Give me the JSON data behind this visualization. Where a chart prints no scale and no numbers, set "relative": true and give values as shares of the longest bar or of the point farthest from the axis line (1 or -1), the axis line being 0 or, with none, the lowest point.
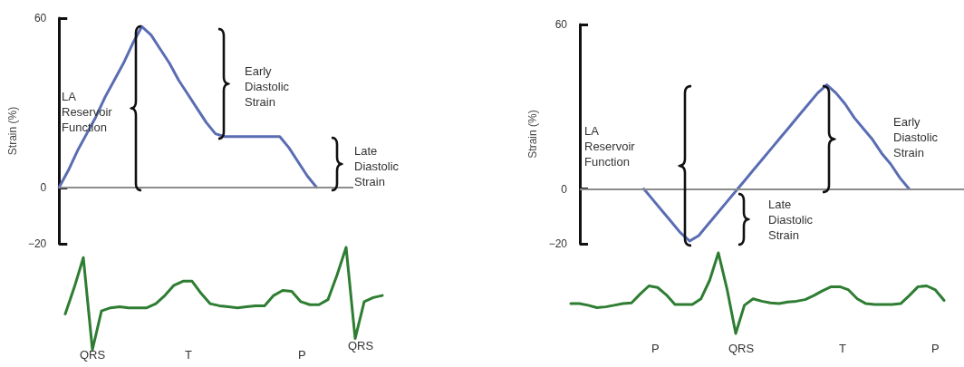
{
  "chart_data": [
    {
      "type": "line",
      "ylabel": "Strain (%)",
      "ylim": [
        -20,
        60
      ],
      "yticks": [
        -20,
        0,
        60
      ],
      "tick_labels": "y",
      "marker": "none",
      "categories": [
        null,
        null,
        null,
        null,
        null,
        null,
        null,
        null,
        null,
        null,
        null,
        null,
        null,
        null,
        null,
        null,
        null,
        null,
        null,
        null,
        null,
        null,
        null,
        null,
        null,
        null,
        null,
        null,
        null,
        null,
        null,
        null,
        null
      ],
      "series": [
        {
          "color": "#5a6db3",
          "values": [
            0,
            6,
            13,
            19,
            25,
            32,
            38,
            44,
            51,
            57,
            54,
            49,
            44,
            38,
            33,
            28,
            23,
            19,
            18,
            18,
            18,
            18,
            18,
            18,
            18,
            14,
            9,
            4,
            0,
            null,
            null,
            null,
            null
          ]
        }
      ],
      "ref_lines": [
        {
          "axis": "y",
          "value": 0,
          "color": "#8c8c8c"
        }
      ],
      "annotations": [
        "LA Reservoir Function",
        "Early Diastolic Strain",
        "Late Diastolic Strain"
      ]
    },
    {
      "type": "line",
      "ylabel": "Strain (%)",
      "ylim": [
        -20,
        60
      ],
      "yticks": [
        -20,
        0,
        60
      ],
      "tick_labels": "y",
      "marker": "none",
      "categories": [
        null,
        null,
        null,
        null,
        null,
        null,
        null,
        null,
        null,
        null,
        null,
        null,
        null,
        null,
        null,
        null,
        null,
        null,
        null,
        null,
        null,
        null,
        null,
        null,
        null,
        null,
        null,
        null,
        null,
        null,
        null,
        null,
        null,
        null,
        null,
        null,
        null,
        null,
        null,
        null,
        null,
        null,
        null
      ],
      "series": [
        {
          "color": "#5a6db3",
          "values": [
            null,
            null,
            null,
            null,
            null,
            null,
            null,
            0,
            -4,
            -8,
            -12,
            -16,
            -19,
            -17,
            -13,
            -9,
            -5,
            -1,
            3,
            7,
            11,
            15,
            19,
            23,
            27,
            31,
            35,
            38,
            35,
            31,
            26,
            22,
            18,
            13,
            9,
            4,
            0,
            null,
            null,
            null,
            null,
            null,
            null
          ]
        }
      ],
      "ref_lines": [
        {
          "axis": "y",
          "value": 0,
          "color": "#8c8c8c"
        }
      ],
      "annotations": [
        "LA Reservoir Function",
        "Late Diastolic Strain",
        "Early Diastolic Strain"
      ]
    },
    {
      "type": "line",
      "relative": true,
      "tick_labels": false,
      "marker": "none",
      "categories": [
        null,
        null,
        null,
        null,
        null,
        null,
        null,
        null,
        null,
        null,
        null,
        null,
        null,
        null,
        null,
        null,
        null,
        null,
        null,
        null,
        null,
        null,
        null,
        null,
        null,
        null,
        null,
        null,
        null,
        null,
        null,
        null,
        null,
        null,
        null,
        null
      ],
      "series": [
        {
          "color": "#2e7d32",
          "values": [
            0.35,
            0.61,
            0.9,
            0,
            0.38,
            0.41,
            0.42,
            0.41,
            0.41,
            0.41,
            0.45,
            0.53,
            0.63,
            0.67,
            0.67,
            0.55,
            0.45,
            0.43,
            0.42,
            0.41,
            0.42,
            0.43,
            0.43,
            0.53,
            0.58,
            0.57,
            0.47,
            0.44,
            0.44,
            0.49,
            0.73,
            1,
            0.11,
            0.47,
            0.51,
            0.53
          ]
        }
      ],
      "annotations": [
        "QRS",
        "T",
        "P",
        "QRS"
      ]
    },
    {
      "type": "line",
      "relative": true,
      "tick_labels": false,
      "marker": "none",
      "categories": [
        null,
        null,
        null,
        null,
        null,
        null,
        null,
        null,
        null,
        null,
        null,
        null,
        null,
        null,
        null,
        null,
        null,
        null,
        null,
        null,
        null,
        null,
        null,
        null,
        null,
        null,
        null,
        null,
        null,
        null,
        null,
        null,
        null,
        null,
        null,
        null,
        null,
        null,
        null,
        null,
        null,
        null,
        null,
        null
      ],
      "series": [
        {
          "color": "#2e7d32",
          "values": [
            0.37,
            0.37,
            0.35,
            0.32,
            0.33,
            0.35,
            0.37,
            0.38,
            0.49,
            0.59,
            0.57,
            0.48,
            0.36,
            0.36,
            0.36,
            0.43,
            0.66,
            1,
            0.55,
            0,
            0.35,
            0.43,
            0.4,
            0.38,
            0.37,
            0.39,
            0.4,
            0.42,
            0.47,
            0.53,
            0.58,
            0.58,
            0.54,
            0.43,
            0.37,
            0.36,
            0.36,
            0.36,
            0.37,
            0.47,
            0.58,
            0.59,
            0.54,
            0.41
          ]
        }
      ],
      "annotations": [
        "P",
        "QRS",
        "T",
        "P"
      ]
    }
  ]
}
